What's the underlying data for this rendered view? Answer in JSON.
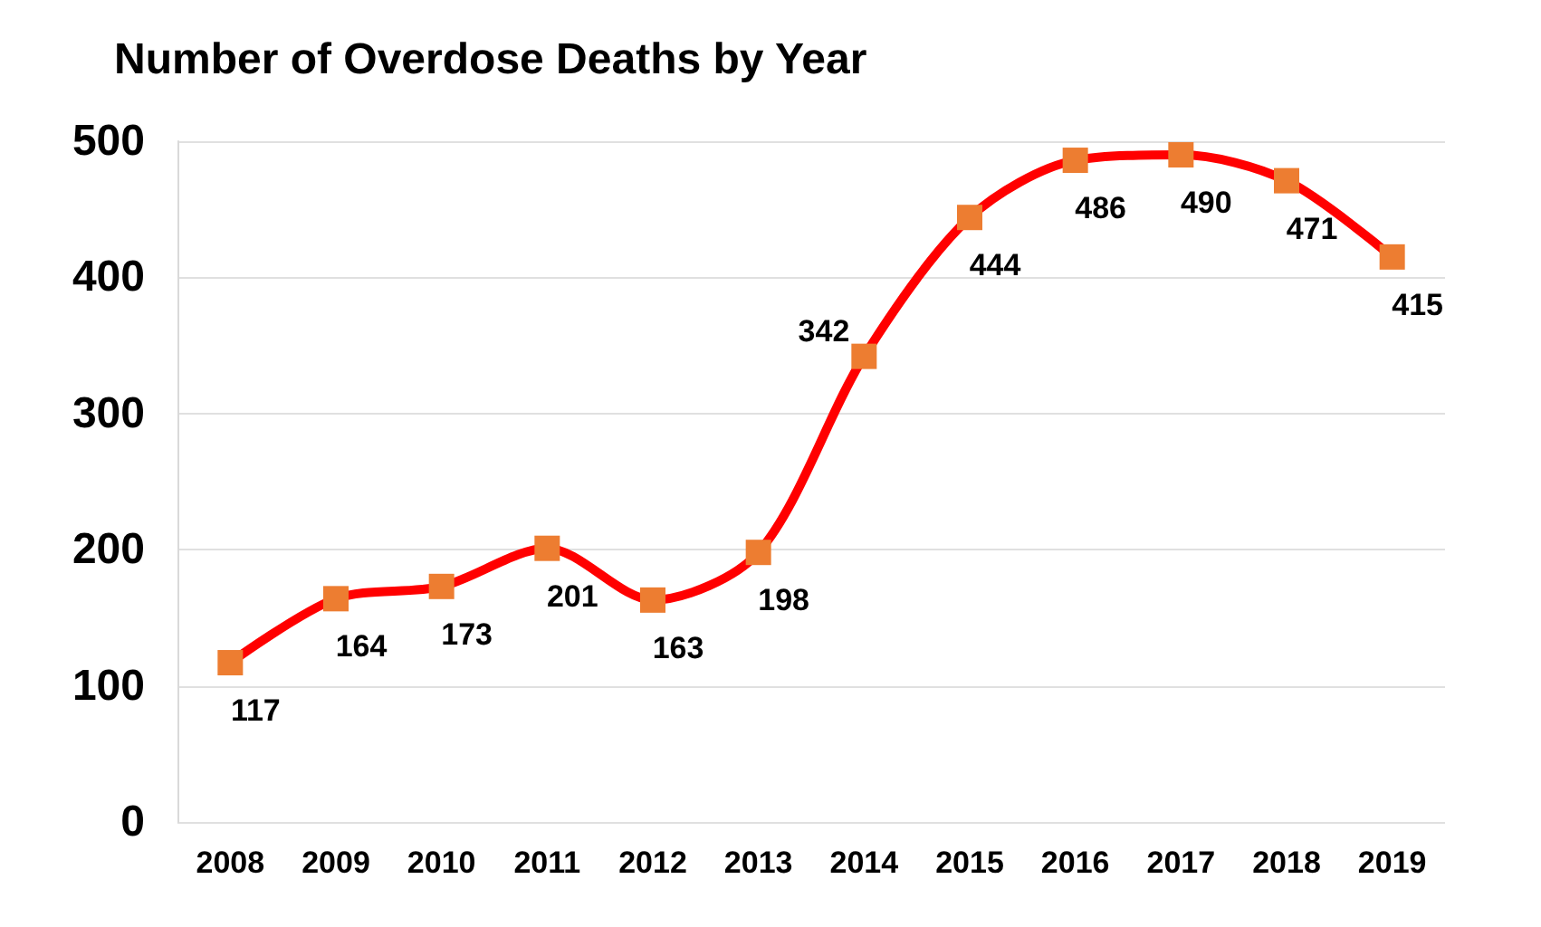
{
  "chart_data": {
    "type": "line",
    "title": "Number of Overdose Deaths by Year",
    "categories": [
      "2008",
      "2009",
      "2010",
      "2011",
      "2012",
      "2013",
      "2014",
      "2015",
      "2016",
      "2017",
      "2018",
      "2019"
    ],
    "series": [
      {
        "color": "#ff0000",
        "colors": [
          "#ed7d31",
          "#ed7d31",
          "#ed7d31",
          "#ed7d31",
          "#ed7d31",
          "#ed7d31",
          "#ed7d31",
          "#ed7d31",
          "#ed7d31",
          "#ed7d31",
          "#ed7d31",
          "#ed7d31"
        ],
        "values": [
          117,
          164,
          173,
          201,
          163,
          198,
          342,
          444,
          486,
          490,
          471,
          415
        ]
      }
    ],
    "ylim": [
      0,
      500
    ],
    "yticks": [
      0,
      100,
      200,
      300,
      400,
      500
    ],
    "grid": "y",
    "marker": "square",
    "line_style": "solid",
    "data_labels": true
  }
}
